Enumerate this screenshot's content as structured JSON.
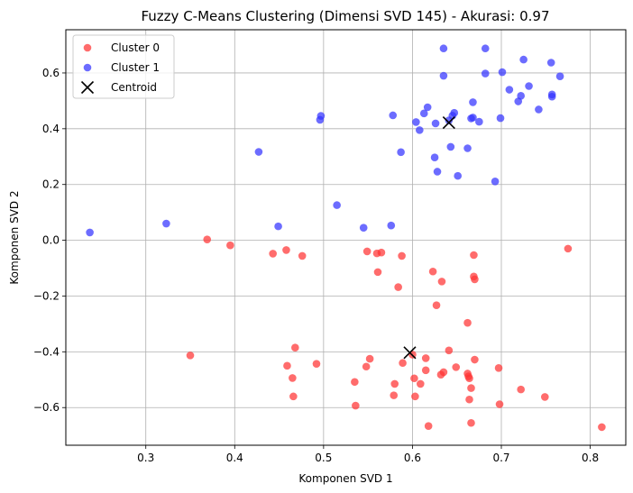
{
  "chart_data": {
    "type": "scatter",
    "title": "Fuzzy C-Means Clustering (Dimensi SVD 145) - Akurasi: 0.97",
    "xlabel": "Komponen SVD 1",
    "ylabel": "Komponen SVD 2",
    "xlim": [
      0.21,
      0.84
    ],
    "ylim": [
      -0.735,
      0.755
    ],
    "xticks": [
      0.3,
      0.4,
      0.5,
      0.6,
      0.7,
      0.8
    ],
    "xtick_labels": [
      "0.3",
      "0.4",
      "0.5",
      "0.6",
      "0.7",
      "0.8"
    ],
    "yticks": [
      -0.6,
      -0.4,
      -0.2,
      0.0,
      0.2,
      0.4,
      0.6
    ],
    "ytick_labels": [
      "−0.6",
      "−0.4",
      "−0.2",
      "0.0",
      "0.2",
      "0.4",
      "0.6"
    ],
    "grid": true,
    "legend_position": "top-left",
    "legend": [
      "Cluster 0",
      "Cluster 1",
      "Centroid"
    ],
    "series": [
      {
        "name": "Cluster 0",
        "color": "#ff3333",
        "points": [
          [
            0.369,
            0.003
          ],
          [
            0.395,
            -0.018
          ],
          [
            0.443,
            -0.048
          ],
          [
            0.458,
            -0.035
          ],
          [
            0.476,
            -0.056
          ],
          [
            0.549,
            -0.04
          ],
          [
            0.56,
            -0.047
          ],
          [
            0.565,
            -0.044
          ],
          [
            0.588,
            -0.056
          ],
          [
            0.561,
            -0.114
          ],
          [
            0.584,
            -0.168
          ],
          [
            0.623,
            -0.112
          ],
          [
            0.633,
            -0.148
          ],
          [
            0.669,
            -0.053
          ],
          [
            0.669,
            -0.13
          ],
          [
            0.67,
            -0.14
          ],
          [
            0.627,
            -0.233
          ],
          [
            0.775,
            -0.03
          ],
          [
            0.662,
            -0.296
          ],
          [
            0.35,
            -0.413
          ],
          [
            0.468,
            -0.385
          ],
          [
            0.492,
            -0.443
          ],
          [
            0.459,
            -0.45
          ],
          [
            0.465,
            -0.494
          ],
          [
            0.466,
            -0.56
          ],
          [
            0.552,
            -0.425
          ],
          [
            0.548,
            -0.453
          ],
          [
            0.589,
            -0.44
          ],
          [
            0.6,
            -0.41
          ],
          [
            0.615,
            -0.423
          ],
          [
            0.615,
            -0.466
          ],
          [
            0.641,
            -0.395
          ],
          [
            0.635,
            -0.473
          ],
          [
            0.632,
            -0.482
          ],
          [
            0.649,
            -0.455
          ],
          [
            0.67,
            -0.428
          ],
          [
            0.662,
            -0.478
          ],
          [
            0.663,
            -0.488
          ],
          [
            0.664,
            -0.495
          ],
          [
            0.666,
            -0.53
          ],
          [
            0.664,
            -0.571
          ],
          [
            0.58,
            -0.515
          ],
          [
            0.602,
            -0.495
          ],
          [
            0.609,
            -0.515
          ],
          [
            0.535,
            -0.508
          ],
          [
            0.579,
            -0.556
          ],
          [
            0.603,
            -0.56
          ],
          [
            0.536,
            -0.593
          ],
          [
            0.618,
            -0.666
          ],
          [
            0.666,
            -0.655
          ],
          [
            0.697,
            -0.458
          ],
          [
            0.722,
            -0.535
          ],
          [
            0.749,
            -0.562
          ],
          [
            0.698,
            -0.588
          ],
          [
            0.813,
            -0.67
          ]
        ]
      },
      {
        "name": "Cluster 1",
        "color": "#3333ff",
        "points": [
          [
            0.237,
            0.028
          ],
          [
            0.323,
            0.06
          ],
          [
            0.449,
            0.05
          ],
          [
            0.427,
            0.317
          ],
          [
            0.515,
            0.126
          ],
          [
            0.545,
            0.045
          ],
          [
            0.576,
            0.053
          ],
          [
            0.496,
            0.432
          ],
          [
            0.497,
            0.446
          ],
          [
            0.578,
            0.448
          ],
          [
            0.587,
            0.316
          ],
          [
            0.604,
            0.424
          ],
          [
            0.608,
            0.395
          ],
          [
            0.613,
            0.455
          ],
          [
            0.617,
            0.477
          ],
          [
            0.625,
            0.297
          ],
          [
            0.628,
            0.246
          ],
          [
            0.626,
            0.419
          ],
          [
            0.635,
            0.688
          ],
          [
            0.635,
            0.59
          ],
          [
            0.641,
            0.43
          ],
          [
            0.643,
            0.335
          ],
          [
            0.645,
            0.447
          ],
          [
            0.647,
            0.457
          ],
          [
            0.651,
            0.231
          ],
          [
            0.662,
            0.33
          ],
          [
            0.666,
            0.437
          ],
          [
            0.668,
            0.495
          ],
          [
            0.675,
            0.425
          ],
          [
            0.682,
            0.688
          ],
          [
            0.682,
            0.598
          ],
          [
            0.668,
            0.44
          ],
          [
            0.693,
            0.211
          ],
          [
            0.699,
            0.438
          ],
          [
            0.701,
            0.603
          ],
          [
            0.709,
            0.54
          ],
          [
            0.719,
            0.498
          ],
          [
            0.722,
            0.518
          ],
          [
            0.725,
            0.648
          ],
          [
            0.731,
            0.553
          ],
          [
            0.742,
            0.469
          ],
          [
            0.756,
            0.637
          ],
          [
            0.757,
            0.523
          ],
          [
            0.757,
            0.515
          ],
          [
            0.766,
            0.588
          ]
        ]
      },
      {
        "name": "Centroid",
        "color": "#000000",
        "marker": "x",
        "points": [
          [
            0.641,
            0.422
          ],
          [
            0.597,
            -0.403
          ]
        ]
      }
    ]
  }
}
